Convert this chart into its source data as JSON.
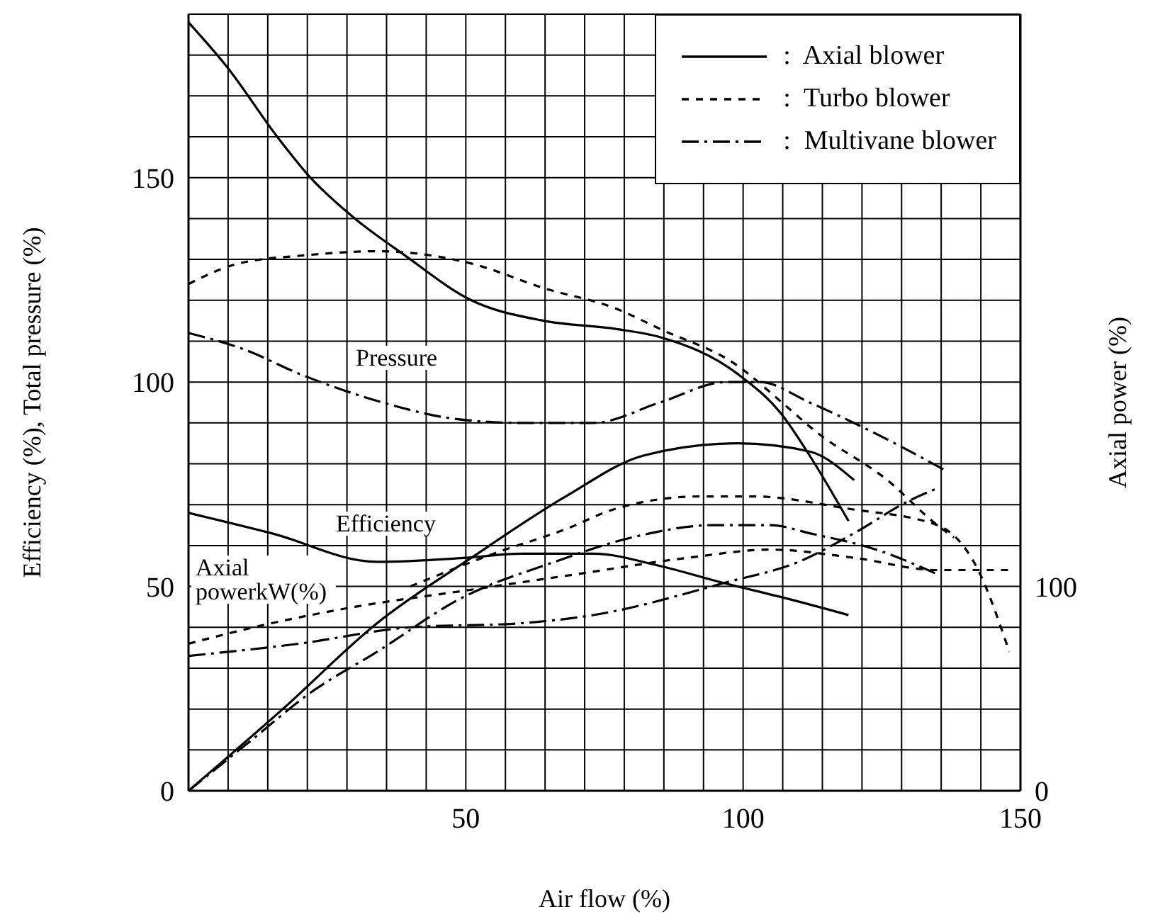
{
  "chart_data": {
    "type": "line",
    "xlabel": "Air flow (%)",
    "ylabel": "Efficiency (%), Total pressure (%)",
    "y2label": "Axial power (%)",
    "xlim": [
      0,
      150
    ],
    "xticks": [
      {
        "value": 0,
        "label": null
      },
      {
        "value": 7.14,
        "label": null
      },
      {
        "value": 14.29,
        "label": null
      },
      {
        "value": 21.43,
        "label": null
      },
      {
        "value": 28.57,
        "label": null
      },
      {
        "value": 35.71,
        "label": null
      },
      {
        "value": 42.86,
        "label": null
      },
      50,
      {
        "value": 57.14,
        "label": null
      },
      {
        "value": 64.29,
        "label": null
      },
      {
        "value": 71.43,
        "label": null
      },
      {
        "value": 78.57,
        "label": null
      },
      {
        "value": 85.71,
        "label": null
      },
      {
        "value": 92.86,
        "label": null
      },
      100,
      {
        "value": 107.14,
        "label": null
      },
      {
        "value": 114.29,
        "label": null
      },
      {
        "value": 121.43,
        "label": null
      },
      {
        "value": 128.57,
        "label": null
      },
      {
        "value": 135.71,
        "label": null
      },
      {
        "value": 142.86,
        "label": null
      },
      150
    ],
    "ylim": [
      0,
      190
    ],
    "yticks": [
      0,
      {
        "value": 10,
        "label": null
      },
      {
        "value": 20,
        "label": null
      },
      {
        "value": 30,
        "label": null
      },
      {
        "value": 40,
        "label": null
      },
      50,
      {
        "value": 60,
        "label": null
      },
      {
        "value": 70,
        "label": null
      },
      {
        "value": 80,
        "label": null
      },
      {
        "value": 90,
        "label": null
      },
      100,
      {
        "value": 110,
        "label": null
      },
      {
        "value": 120,
        "label": null
      },
      {
        "value": 130,
        "label": null
      },
      {
        "value": 140,
        "label": null
      },
      150,
      {
        "value": 160,
        "label": null
      },
      {
        "value": 170,
        "label": null
      },
      {
        "value": 180,
        "label": null
      }
    ],
    "y2lim": [
      0,
      380
    ],
    "y2ticks": [
      0,
      100
    ],
    "grid": true,
    "legend": "top right",
    "series": [
      {
        "name": ":  Axial blower",
        "color": "#000000",
        "line_style": "solid",
        "x": [
          0,
          7,
          16,
          22,
          30,
          39,
          51,
          64,
          77,
          85,
          99,
          107,
          112,
          119
        ],
        "values": [
          188,
          177,
          160,
          150,
          140,
          131,
          120,
          115,
          113,
          111,
          102,
          92,
          82,
          66
        ]
      },
      {
        "name": ":  Turbo blower",
        "color": "#000000",
        "line_style": "dashed",
        "x": [
          0,
          9,
          21,
          34,
          51,
          64,
          77,
          85,
          99,
          107,
          113,
          126,
          135,
          138
        ],
        "values": [
          124,
          129,
          131,
          132,
          129,
          123,
          118,
          113,
          104,
          95,
          88,
          76,
          65,
          62
        ]
      },
      {
        "name": ":  Multivane blower",
        "color": "#000000",
        "line_style": "dashdot",
        "x": [
          0,
          10,
          20,
          35,
          48,
          60,
          73,
          85,
          97,
          103,
          112,
          123,
          137
        ],
        "values": [
          112,
          108,
          102,
          95,
          91,
          90,
          90,
          95,
          100,
          100,
          95,
          88,
          78
        ]
      },
      {
        "color": "#000000",
        "line_style": "solid",
        "x": [
          0,
          17,
          34,
          51,
          68,
          82,
          99,
          112,
          120
        ],
        "values": [
          0,
          20,
          41,
          57,
          72,
          82,
          85,
          83,
          76
        ]
      },
      {
        "color": "#000000",
        "line_style": "dashed",
        "x": [
          40,
          55,
          68,
          77,
          92,
          102,
          119,
          135,
          142,
          148
        ],
        "values": [
          50,
          58,
          64,
          69,
          72,
          72,
          69,
          65,
          55,
          34
        ]
      },
      {
        "color": "#000000",
        "line_style": "dashdot",
        "x": [
          0,
          11,
          22,
          34,
          49,
          66,
          80,
          95,
          105,
          112,
          124,
          135
        ],
        "values": [
          0,
          12,
          24,
          34,
          47,
          56,
          62,
          65,
          65,
          63,
          59,
          53
        ]
      },
      {
        "color": "#000000",
        "line_style": "solid",
        "axis": "y2",
        "x": [
          0,
          15,
          34,
          50,
          60,
          73,
          85,
          96,
          108,
          119
        ],
        "values": [
          136,
          126,
          112,
          114,
          116,
          116,
          110,
          102,
          94,
          86
        ]
      },
      {
        "color": "#000000",
        "line_style": "dashed",
        "axis": "y2",
        "x": [
          0,
          15,
          30,
          50,
          70,
          90,
          105,
          120,
          135,
          148
        ],
        "values": [
          72,
          82,
          90,
          98,
          106,
          114,
          118,
          114,
          108,
          108
        ]
      },
      {
        "color": "#000000",
        "line_style": "dashdot",
        "axis": "y2",
        "x": [
          0,
          20,
          40,
          60,
          73,
          97,
          110,
          120,
          130,
          135
        ],
        "values": [
          66,
          72,
          80,
          82,
          86,
          102,
          112,
          126,
          142,
          148
        ]
      }
    ],
    "annotations": [
      "Pressure",
      "Efficiency",
      "Axial powerkW(%)"
    ]
  }
}
